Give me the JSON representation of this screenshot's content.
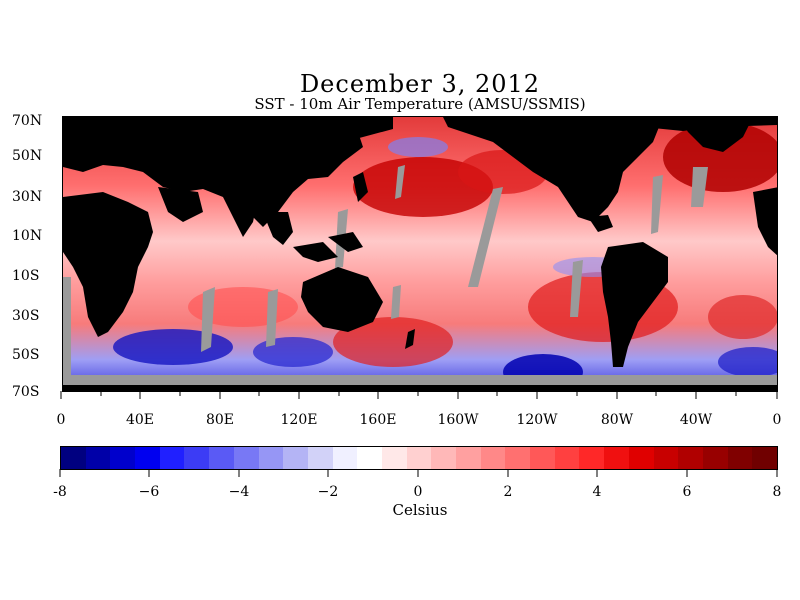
{
  "title": "December 3, 2012",
  "subtitle": "SST - 10m Air Temperature (AMSU/SSMIS)",
  "colors": {
    "land": "#000000",
    "missing": "#9a9a9a",
    "warm": "#d40000",
    "cool": "#1a1acc"
  },
  "map": {
    "lat_labels": [
      "70N",
      "50N",
      "30N",
      "10N",
      "10S",
      "30S",
      "50S",
      "70S"
    ],
    "lon_labels": [
      "0",
      "40E",
      "80E",
      "120E",
      "160E",
      "160W",
      "120W",
      "80W",
      "40W",
      "0"
    ]
  },
  "colorbar": {
    "tick_labels": [
      "-8",
      "−6",
      "−4",
      "−2",
      "0",
      "2",
      "4",
      "6",
      "8"
    ],
    "unit": "Celsius",
    "range": [
      -8,
      8
    ],
    "colors": [
      "#000080",
      "#0000a8",
      "#0000cc",
      "#0000f0",
      "#2020ff",
      "#3c3cf5",
      "#5a5af5",
      "#7878f5",
      "#9696f5",
      "#b4b4f5",
      "#d2d2f8",
      "#f0f0ff",
      "#ffffff",
      "#ffe8e8",
      "#ffd0d0",
      "#ffb8b8",
      "#ffa0a0",
      "#ff8888",
      "#ff7070",
      "#ff5858",
      "#ff4040",
      "#ff2828",
      "#f01010",
      "#e00000",
      "#c80000",
      "#b00000",
      "#980000",
      "#800000",
      "#700000"
    ]
  }
}
